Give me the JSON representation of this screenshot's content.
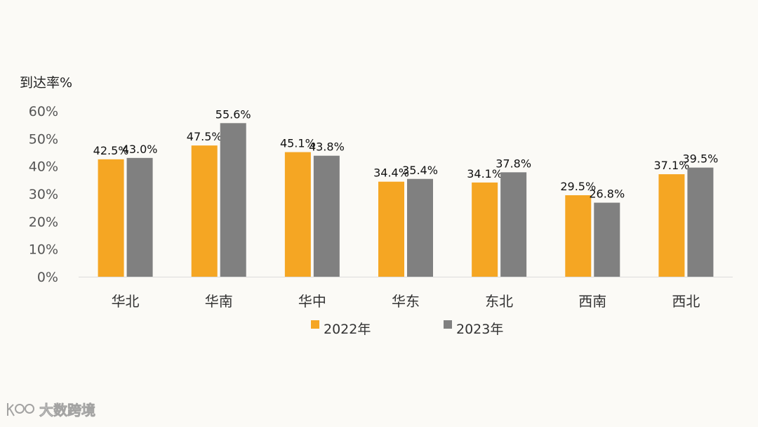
{
  "chart_data": {
    "type": "bar",
    "ylabel": "到达率%",
    "ylim": [
      0,
      60
    ],
    "yticks": [
      "0%",
      "10%",
      "20%",
      "30%",
      "40%",
      "50%",
      "60%"
    ],
    "categories": [
      "华北",
      "华南",
      "华中",
      "华东",
      "东北",
      "西南",
      "西北"
    ],
    "series": [
      {
        "name": "2022年",
        "color": "#f5a623",
        "values": [
          42.5,
          47.5,
          45.1,
          34.4,
          34.1,
          29.5,
          37.1
        ],
        "labels": [
          "42.5%",
          "47.5%",
          "45.1%",
          "34.4%",
          "34.1%",
          "29.5%",
          "37.1%"
        ]
      },
      {
        "name": "2023年",
        "color": "#808080",
        "values": [
          43.0,
          55.6,
          43.8,
          35.4,
          37.8,
          26.8,
          39.5
        ],
        "labels": [
          "43.0%",
          "55.6%",
          "43.8%",
          "35.4%",
          "37.8%",
          "26.8%",
          "39.5%"
        ]
      }
    ],
    "legend_position": "bottom",
    "grid": false
  },
  "watermark": {
    "text": "大数跨境",
    "icon": "kuajing-logo-icon"
  }
}
